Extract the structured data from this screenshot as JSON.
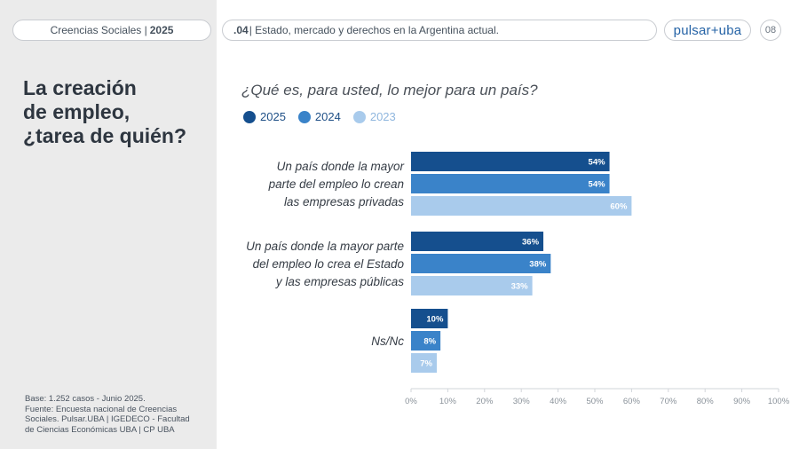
{
  "header": {
    "section_label": "Creencias Sociales |",
    "year": "2025",
    "chapter_number": ".04",
    "chapter_title": "| Estado, mercado y derechos en la Argentina actual.",
    "logo_text": "pulsar+uba",
    "page_number": "08"
  },
  "sidebar": {
    "title_lines": [
      "La creación",
      "de empleo,",
      "¿tarea de quién?"
    ],
    "source_lines": [
      "Base: 1.252 casos - Junio 2025.",
      "Fuente: Encuesta nacional de Creencias",
      "Sociales. Pulsar.UBA | IGEDECO - Facultad",
      "de Ciencias Económicas UBA | CP UBA"
    ]
  },
  "colors": {
    "y2025": "#154f8e",
    "y2024": "#3a83c9",
    "y2023": "#a9cbec",
    "legend_text_2023": "#8fb6de",
    "legend_text": "#1e4f86"
  },
  "chart_data": {
    "type": "bar",
    "orientation": "horizontal",
    "title": "¿Qué es, para usted, lo mejor para un país?",
    "categories": [
      [
        "Un país donde la mayor",
        "parte del empleo lo crean",
        "las empresas privadas"
      ],
      [
        "Un país donde la mayor parte",
        "del empleo lo crea el Estado",
        "y las empresas públicas"
      ],
      [
        "Ns/Nc"
      ]
    ],
    "series": [
      {
        "name": "2025",
        "values": [
          54,
          36,
          10
        ]
      },
      {
        "name": "2024",
        "values": [
          54,
          38,
          8
        ]
      },
      {
        "name": "2023",
        "values": [
          60,
          33,
          7
        ]
      }
    ],
    "value_suffix": "%",
    "xlim": [
      0,
      100
    ],
    "xticks": [
      0,
      10,
      20,
      30,
      40,
      50,
      60,
      70,
      80,
      90,
      100
    ],
    "legend_position": "top-left",
    "grid": false
  }
}
